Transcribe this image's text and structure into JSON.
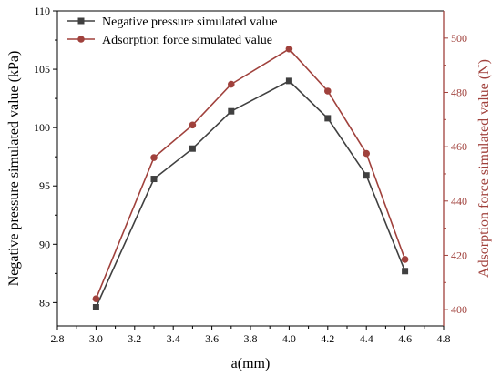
{
  "chart_data": {
    "type": "line",
    "xlabel": "a(mm)",
    "ylabel_left": "Negative pressure simulated value (kPa)",
    "ylabel_right": "Adsorption force simulated value (N)",
    "xlim": [
      2.8,
      4.8
    ],
    "ylim_left": [
      83,
      110
    ],
    "ylim_right": [
      394,
      510
    ],
    "x_ticks": [
      "2.8",
      "3.0",
      "3.2",
      "3.4",
      "3.6",
      "3.8",
      "4.0",
      "4.2",
      "4.4",
      "4.6",
      "4.8"
    ],
    "y_left_ticks": [
      "85",
      "90",
      "95",
      "100",
      "105",
      "110"
    ],
    "y_right_ticks": [
      "400",
      "420",
      "440",
      "460",
      "480",
      "500"
    ],
    "legend_position": "top-left",
    "grid": false,
    "x": [
      3.0,
      3.3,
      3.5,
      3.7,
      4.0,
      4.2,
      4.4,
      4.6
    ],
    "series": [
      {
        "name": "Negative pressure simulated value",
        "axis": "left",
        "marker": "square",
        "color": "#404040",
        "values": [
          84.6,
          95.6,
          98.2,
          101.4,
          104.0,
          100.8,
          95.9,
          87.7
        ]
      },
      {
        "name": "Adsorption force simulated value",
        "axis": "right",
        "marker": "circle",
        "color": "#a0413c",
        "values": [
          404,
          456,
          468,
          483,
          496,
          480.5,
          457.5,
          418.5
        ]
      }
    ],
    "axis_colors": {
      "left": "#000000",
      "right": "#a0413c"
    }
  }
}
